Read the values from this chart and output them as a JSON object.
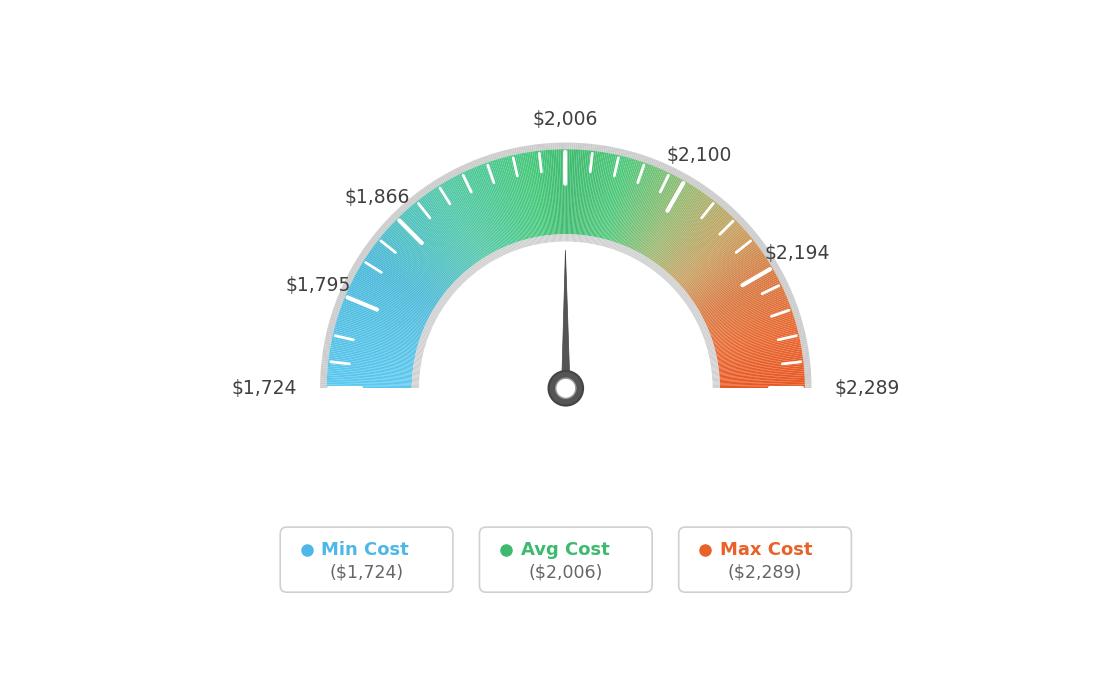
{
  "min_val": 1724,
  "max_val": 2289,
  "avg_val": 2006,
  "labels": [
    "$1,724",
    "$1,795",
    "$1,866",
    "$2,006",
    "$2,100",
    "$2,194",
    "$2,289"
  ],
  "label_vals": [
    1724,
    1795,
    1866,
    2006,
    2100,
    2194,
    2289
  ],
  "legend": [
    {
      "label": "Min Cost",
      "value": "($1,724)",
      "color": "#4db8e8"
    },
    {
      "label": "Avg Cost",
      "value": "($2,006)",
      "color": "#3dba6e"
    },
    {
      "label": "Max Cost",
      "value": "($2,289)",
      "color": "#e8622a"
    }
  ],
  "background_color": "#ffffff",
  "colors_gradient": [
    [
      0.0,
      "#5bc8f0"
    ],
    [
      0.18,
      "#4ab8d8"
    ],
    [
      0.32,
      "#52c8a8"
    ],
    [
      0.45,
      "#45c87a"
    ],
    [
      0.5,
      "#3dba6e"
    ],
    [
      0.58,
      "#4ec87a"
    ],
    [
      0.68,
      "#9db870"
    ],
    [
      0.76,
      "#c8a060"
    ],
    [
      0.84,
      "#d87840"
    ],
    [
      0.92,
      "#e86830"
    ],
    [
      1.0,
      "#e85520"
    ]
  ]
}
